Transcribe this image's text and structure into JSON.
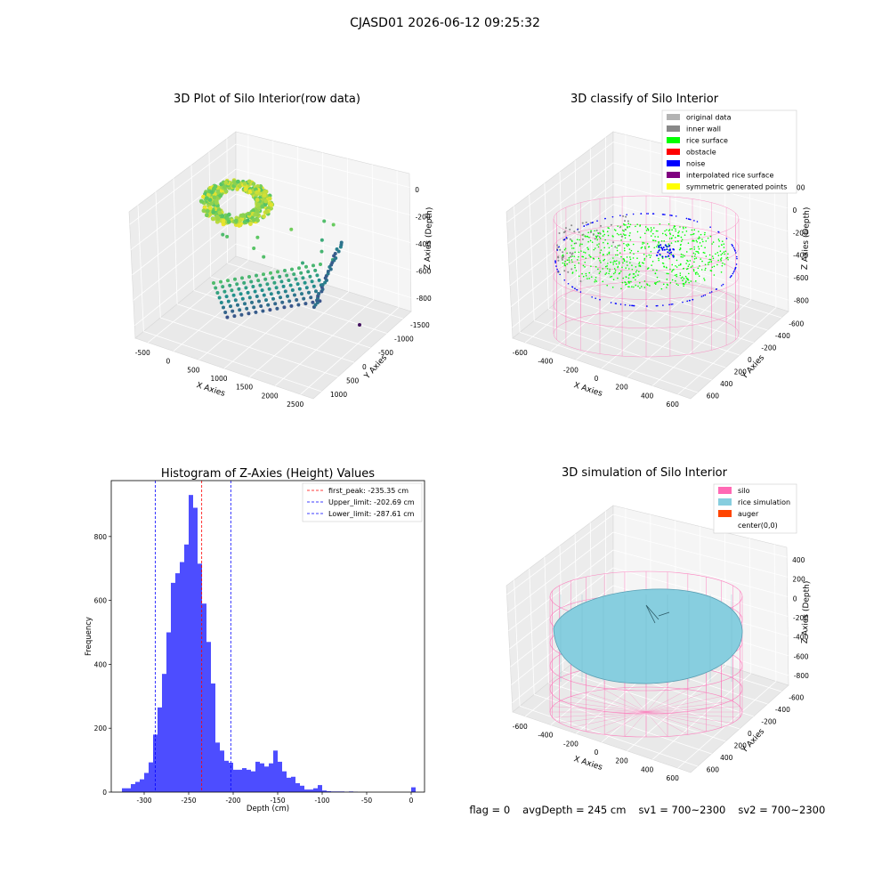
{
  "figure": {
    "suptitle": "CJASD01 2026-06-12 09:25:32",
    "status": {
      "flag": "flag = 0",
      "avg_depth": "avgDepth = 245 cm",
      "sv1": "sv1 = 700~2300",
      "sv2": "sv2 = 700~2300"
    }
  },
  "colors": {
    "original_data": "#b3b3b3",
    "inner_wall": "#888888",
    "rice_surface": "#00ff00",
    "obstacle": "#ff0000",
    "noise": "#0000ff",
    "interpolated_rice_surface": "#800080",
    "symmetric_generated_points": "#ffff00",
    "silo": "#ff69b4",
    "rice_simulation": "#87cedf",
    "auger": "#ff4500",
    "histogram": "#4d4dff"
  },
  "chart_data": [
    {
      "type": "scatter3d",
      "title": "3D Plot of Silo Interior(row data)",
      "xlabel": "X Axies",
      "ylabel": "Y Axies",
      "zlabel": "Z Axies (Depth)",
      "x_ticks": [
        "-500",
        "0",
        "500",
        "1000",
        "1500",
        "2000",
        "2500"
      ],
      "y_ticks": [
        "1000",
        "500",
        "0",
        "-500",
        "-1000",
        "-1500"
      ],
      "z_ticks": [
        "0",
        "-200",
        "-400",
        "-600",
        "-800"
      ],
      "colormap": "viridis"
    },
    {
      "type": "scatter3d",
      "title": "3D classify of Silo Interior",
      "xlabel": "X Axies",
      "ylabel": "Y Axies",
      "zlabel": "Z Axies (Depth)",
      "x_ticks": [
        "-600",
        "-400",
        "-200",
        "0",
        "200",
        "400",
        "600"
      ],
      "y_ticks": [
        "600",
        "400",
        "200",
        "0",
        "-200",
        "-400",
        "-600"
      ],
      "z_ticks": [
        "200",
        "0",
        "-200",
        "-400",
        "-600",
        "-800"
      ],
      "legend": [
        "original data",
        "inner wall",
        "rice surface",
        "obstacle",
        "noise",
        "interpolated rice surface",
        "symmetric generated points"
      ],
      "legend_position": "top-right"
    },
    {
      "type": "bar",
      "title": "Histogram of Z-Axies (Height) Values",
      "xlabel": "Depth (cm)",
      "ylabel": "Frequency",
      "xlim": [
        -337,
        15
      ],
      "ylim": [
        0,
        975
      ],
      "x_ticks": [
        -300,
        -250,
        -200,
        -150,
        -100,
        -50,
        0
      ],
      "y_ticks": [
        0,
        200,
        400,
        600,
        800
      ],
      "bin_width": 5,
      "bin_starts": [
        -325,
        -320,
        -315,
        -310,
        -305,
        -300,
        -295,
        -290,
        -285,
        -280,
        -275,
        -270,
        -265,
        -260,
        -255,
        -250,
        -245,
        -240,
        -235,
        -230,
        -225,
        -220,
        -215,
        -210,
        -205,
        -200,
        -195,
        -190,
        -185,
        -180,
        -175,
        -170,
        -165,
        -160,
        -155,
        -150,
        -145,
        -140,
        -135,
        -130,
        -125,
        -120,
        -115,
        -110,
        -105,
        -100,
        -95,
        -90,
        -85,
        -80,
        -75,
        -70,
        -65,
        -60,
        -55,
        -50,
        -45,
        -40,
        -35,
        -30,
        -25,
        -20,
        -15,
        -10,
        -5,
        0
      ],
      "values": [
        12,
        12,
        25,
        32,
        40,
        60,
        93,
        180,
        265,
        370,
        500,
        655,
        685,
        720,
        775,
        930,
        890,
        715,
        590,
        470,
        340,
        155,
        130,
        98,
        92,
        70,
        70,
        75,
        70,
        65,
        95,
        90,
        80,
        90,
        130,
        95,
        65,
        45,
        48,
        28,
        20,
        8,
        8,
        12,
        22,
        5,
        3,
        2,
        2,
        2,
        1,
        2,
        1,
        0,
        0,
        0,
        0,
        0,
        0,
        0,
        0,
        0,
        0,
        0,
        0,
        15
      ],
      "lines": [
        {
          "label": "first_peak: -235.35 cm",
          "x": -235.35,
          "color": "#ff0000"
        },
        {
          "label": "Upper_limit: -202.69 cm",
          "x": -202.69,
          "color": "#0000ff"
        },
        {
          "label": "Lower_limit: -287.61 cm",
          "x": -287.61,
          "color": "#0000ff"
        }
      ],
      "legend_position": "top-right"
    },
    {
      "type": "surface3d",
      "title": "3D simulation of Silo Interior",
      "xlabel": "X Axies",
      "ylabel": "Y Axies",
      "zlabel": "Z Axies (Depth)",
      "x_ticks": [
        "-600",
        "-400",
        "-200",
        "0",
        "200",
        "400",
        "600"
      ],
      "y_ticks": [
        "600",
        "400",
        "200",
        "0",
        "-200",
        "-400",
        "-600"
      ],
      "z_ticks": [
        "400",
        "200",
        "0",
        "-200",
        "-400",
        "-600",
        "-800"
      ],
      "legend": [
        "silo",
        "rice simulation",
        "auger",
        "center(0,0)"
      ],
      "legend_position": "top-right"
    }
  ]
}
